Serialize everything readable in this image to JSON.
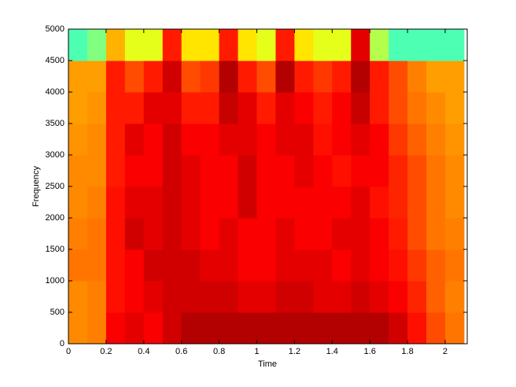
{
  "chart_data": {
    "type": "heatmap",
    "xlabel": "Time",
    "ylabel": "Frequency",
    "x": [
      0.05,
      0.15,
      0.25,
      0.35,
      0.45,
      0.55,
      0.65,
      0.75,
      0.85,
      0.95,
      1.05,
      1.15,
      1.25,
      1.35,
      1.45,
      1.55,
      1.65,
      1.75,
      1.85,
      1.95,
      2.05
    ],
    "y": [
      250,
      750,
      1250,
      1750,
      2250,
      2750,
      3250,
      3750,
      4250,
      4750
    ],
    "z": [
      [
        0.74,
        0.75,
        0.88,
        0.9,
        0.88,
        0.92,
        0.95,
        0.95,
        0.95,
        0.95,
        0.95,
        0.95,
        0.95,
        0.95,
        0.95,
        0.95,
        0.95,
        0.92,
        0.86,
        0.8,
        0.76
      ],
      [
        0.74,
        0.75,
        0.86,
        0.88,
        0.9,
        0.92,
        0.92,
        0.92,
        0.92,
        0.9,
        0.9,
        0.92,
        0.92,
        0.9,
        0.9,
        0.92,
        0.9,
        0.88,
        0.84,
        0.78,
        0.75
      ],
      [
        0.76,
        0.76,
        0.86,
        0.88,
        0.92,
        0.92,
        0.92,
        0.9,
        0.9,
        0.88,
        0.88,
        0.9,
        0.9,
        0.9,
        0.88,
        0.9,
        0.88,
        0.86,
        0.82,
        0.78,
        0.76
      ],
      [
        0.75,
        0.76,
        0.86,
        0.92,
        0.9,
        0.92,
        0.9,
        0.88,
        0.9,
        0.88,
        0.88,
        0.9,
        0.88,
        0.88,
        0.9,
        0.9,
        0.88,
        0.85,
        0.8,
        0.76,
        0.75
      ],
      [
        0.74,
        0.75,
        0.86,
        0.9,
        0.9,
        0.92,
        0.9,
        0.88,
        0.88,
        0.92,
        0.88,
        0.88,
        0.88,
        0.88,
        0.88,
        0.9,
        0.86,
        0.84,
        0.8,
        0.76,
        0.74
      ],
      [
        0.74,
        0.74,
        0.85,
        0.88,
        0.88,
        0.92,
        0.9,
        0.88,
        0.88,
        0.92,
        0.88,
        0.88,
        0.9,
        0.88,
        0.86,
        0.88,
        0.88,
        0.84,
        0.8,
        0.76,
        0.74
      ],
      [
        0.73,
        0.74,
        0.85,
        0.9,
        0.88,
        0.92,
        0.88,
        0.88,
        0.9,
        0.9,
        0.88,
        0.9,
        0.9,
        0.86,
        0.88,
        0.9,
        0.88,
        0.82,
        0.78,
        0.75,
        0.73
      ],
      [
        0.72,
        0.73,
        0.85,
        0.85,
        0.9,
        0.9,
        0.85,
        0.85,
        0.93,
        0.9,
        0.85,
        0.9,
        0.88,
        0.85,
        0.88,
        0.93,
        0.85,
        0.8,
        0.76,
        0.74,
        0.72
      ],
      [
        0.72,
        0.72,
        0.85,
        0.8,
        0.85,
        0.92,
        0.8,
        0.82,
        0.95,
        0.85,
        0.8,
        0.95,
        0.85,
        0.82,
        0.85,
        0.95,
        0.85,
        0.8,
        0.75,
        0.72,
        0.72
      ],
      [
        0.45,
        0.5,
        0.7,
        0.6,
        0.6,
        0.85,
        0.65,
        0.65,
        0.85,
        0.65,
        0.6,
        0.85,
        0.65,
        0.6,
        0.6,
        0.9,
        0.55,
        0.45,
        0.45,
        0.45,
        0.45
      ]
    ],
    "colormap": "jet",
    "xlim": [
      0,
      2.117
    ],
    "ylim": [
      0,
      5000
    ],
    "xticks": [
      0,
      0.2,
      0.4,
      0.6,
      0.8,
      1,
      1.2,
      1.4,
      1.6,
      1.8,
      2
    ],
    "yticks": [
      0,
      500,
      1000,
      1500,
      2000,
      2500,
      3000,
      3500,
      4000,
      4500,
      5000
    ]
  }
}
